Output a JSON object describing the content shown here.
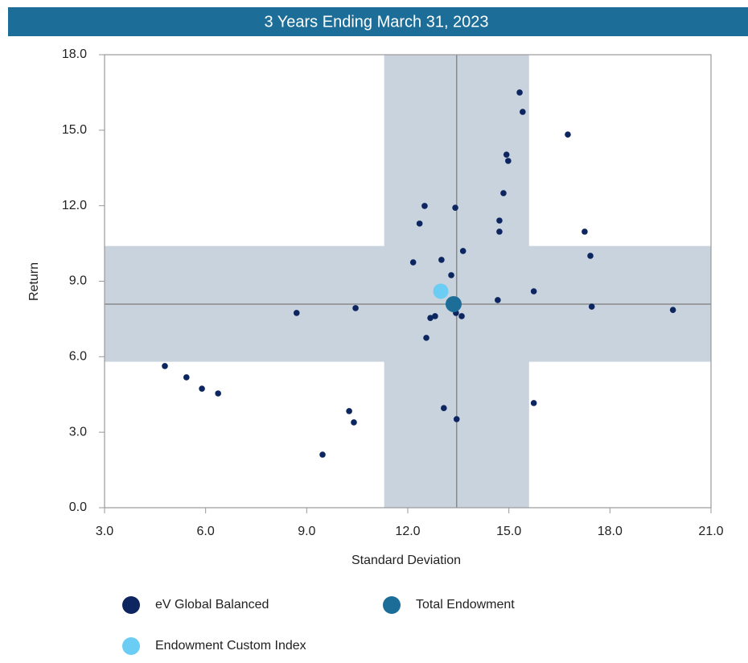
{
  "chart_data": {
    "type": "scatter",
    "title": "3 Years Ending March 31, 2023",
    "x_label": "Standard Deviation",
    "y_label": "Return",
    "xlim": [
      3,
      21
    ],
    "ylim": [
      0,
      18
    ],
    "xticks": [
      {
        "value": 3,
        "label": "3.0"
      },
      {
        "value": 6,
        "label": "6.0"
      },
      {
        "value": 9,
        "label": "9.0"
      },
      {
        "value": 12,
        "label": "12.0"
      },
      {
        "value": 15,
        "label": "15.0"
      },
      {
        "value": 18,
        "label": "18.0"
      },
      {
        "value": 21,
        "label": "21.0"
      }
    ],
    "yticks": [
      {
        "value": 0,
        "label": "0.0"
      },
      {
        "value": 3,
        "label": "3.0"
      },
      {
        "value": 6,
        "label": "6.0"
      },
      {
        "value": 9,
        "label": "9.0"
      },
      {
        "value": 12,
        "label": "12.0"
      },
      {
        "value": 15,
        "label": "15.0"
      },
      {
        "value": 18,
        "label": "18.0"
      }
    ],
    "band_color": "#c9d3de",
    "bands": {
      "x": [
        11.3,
        15.6
      ],
      "y": [
        5.8,
        10.4
      ]
    },
    "reference_lines": {
      "x": 13.45,
      "y": 8.09
    },
    "series": [
      {
        "name": "eV Global Balanced",
        "color": "#0d2660",
        "x": [
          4.79,
          5.43,
          5.89,
          6.37,
          8.7,
          10.45,
          10.26,
          10.4,
          9.47,
          12.16,
          12.35,
          12.5,
          13.0,
          13.29,
          13.41,
          13.64,
          12.55,
          12.67,
          12.81,
          13.07,
          13.45,
          13.43,
          13.6,
          14.67,
          14.72,
          14.72,
          14.84,
          14.93,
          14.98,
          15.32,
          15.41,
          15.74,
          15.74,
          16.75,
          17.25,
          17.42,
          17.46,
          19.87
        ],
        "values": [
          5.63,
          5.18,
          4.73,
          4.54,
          7.74,
          7.93,
          3.84,
          3.39,
          2.11,
          9.75,
          11.29,
          11.99,
          9.85,
          9.24,
          11.92,
          10.2,
          6.75,
          7.54,
          7.61,
          3.96,
          3.52,
          7.74,
          7.61,
          8.25,
          10.97,
          11.41,
          12.5,
          14.03,
          13.78,
          16.5,
          15.73,
          8.6,
          4.16,
          14.83,
          10.97,
          10.01,
          7.99,
          7.86
        ]
      },
      {
        "name": "Endowment Custom Index",
        "color": "#6ccdf4",
        "x": [
          12.98
        ],
        "values": [
          8.6
        ]
      },
      {
        "name": "Total Endowment",
        "color": "#1c6e99",
        "x": [
          13.36
        ],
        "values": [
          8.09
        ]
      }
    ]
  }
}
